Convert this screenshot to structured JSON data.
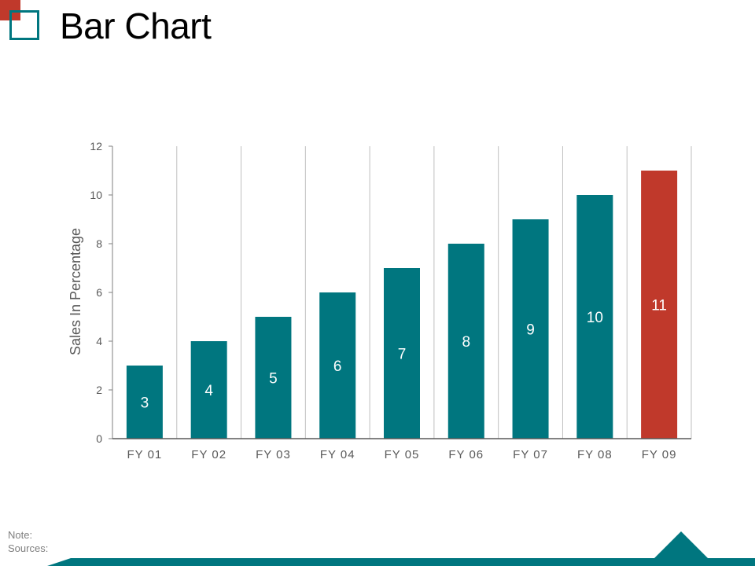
{
  "slide": {
    "title": "Bar Chart",
    "note_label": "Note:",
    "sources_label": "Sources:"
  },
  "colors": {
    "teal": "#00767f",
    "red": "#c0392b",
    "grid": "#bfbfbf",
    "text": "#595959"
  },
  "chart_data": {
    "type": "bar",
    "title": "",
    "xlabel": "",
    "ylabel": "Sales In Percentage",
    "categories": [
      "FY 01",
      "FY 02",
      "FY 03",
      "FY 04",
      "FY 05",
      "FY 06",
      "FY 07",
      "FY 08",
      "FY 09"
    ],
    "values": [
      3,
      4,
      5,
      6,
      7,
      8,
      9,
      10,
      11
    ],
    "highlight_index": 8,
    "ylim": [
      0,
      12
    ],
    "yticks": [
      0,
      2,
      4,
      6,
      8,
      10,
      12
    ],
    "grid": "vertical",
    "data_labels": true
  }
}
